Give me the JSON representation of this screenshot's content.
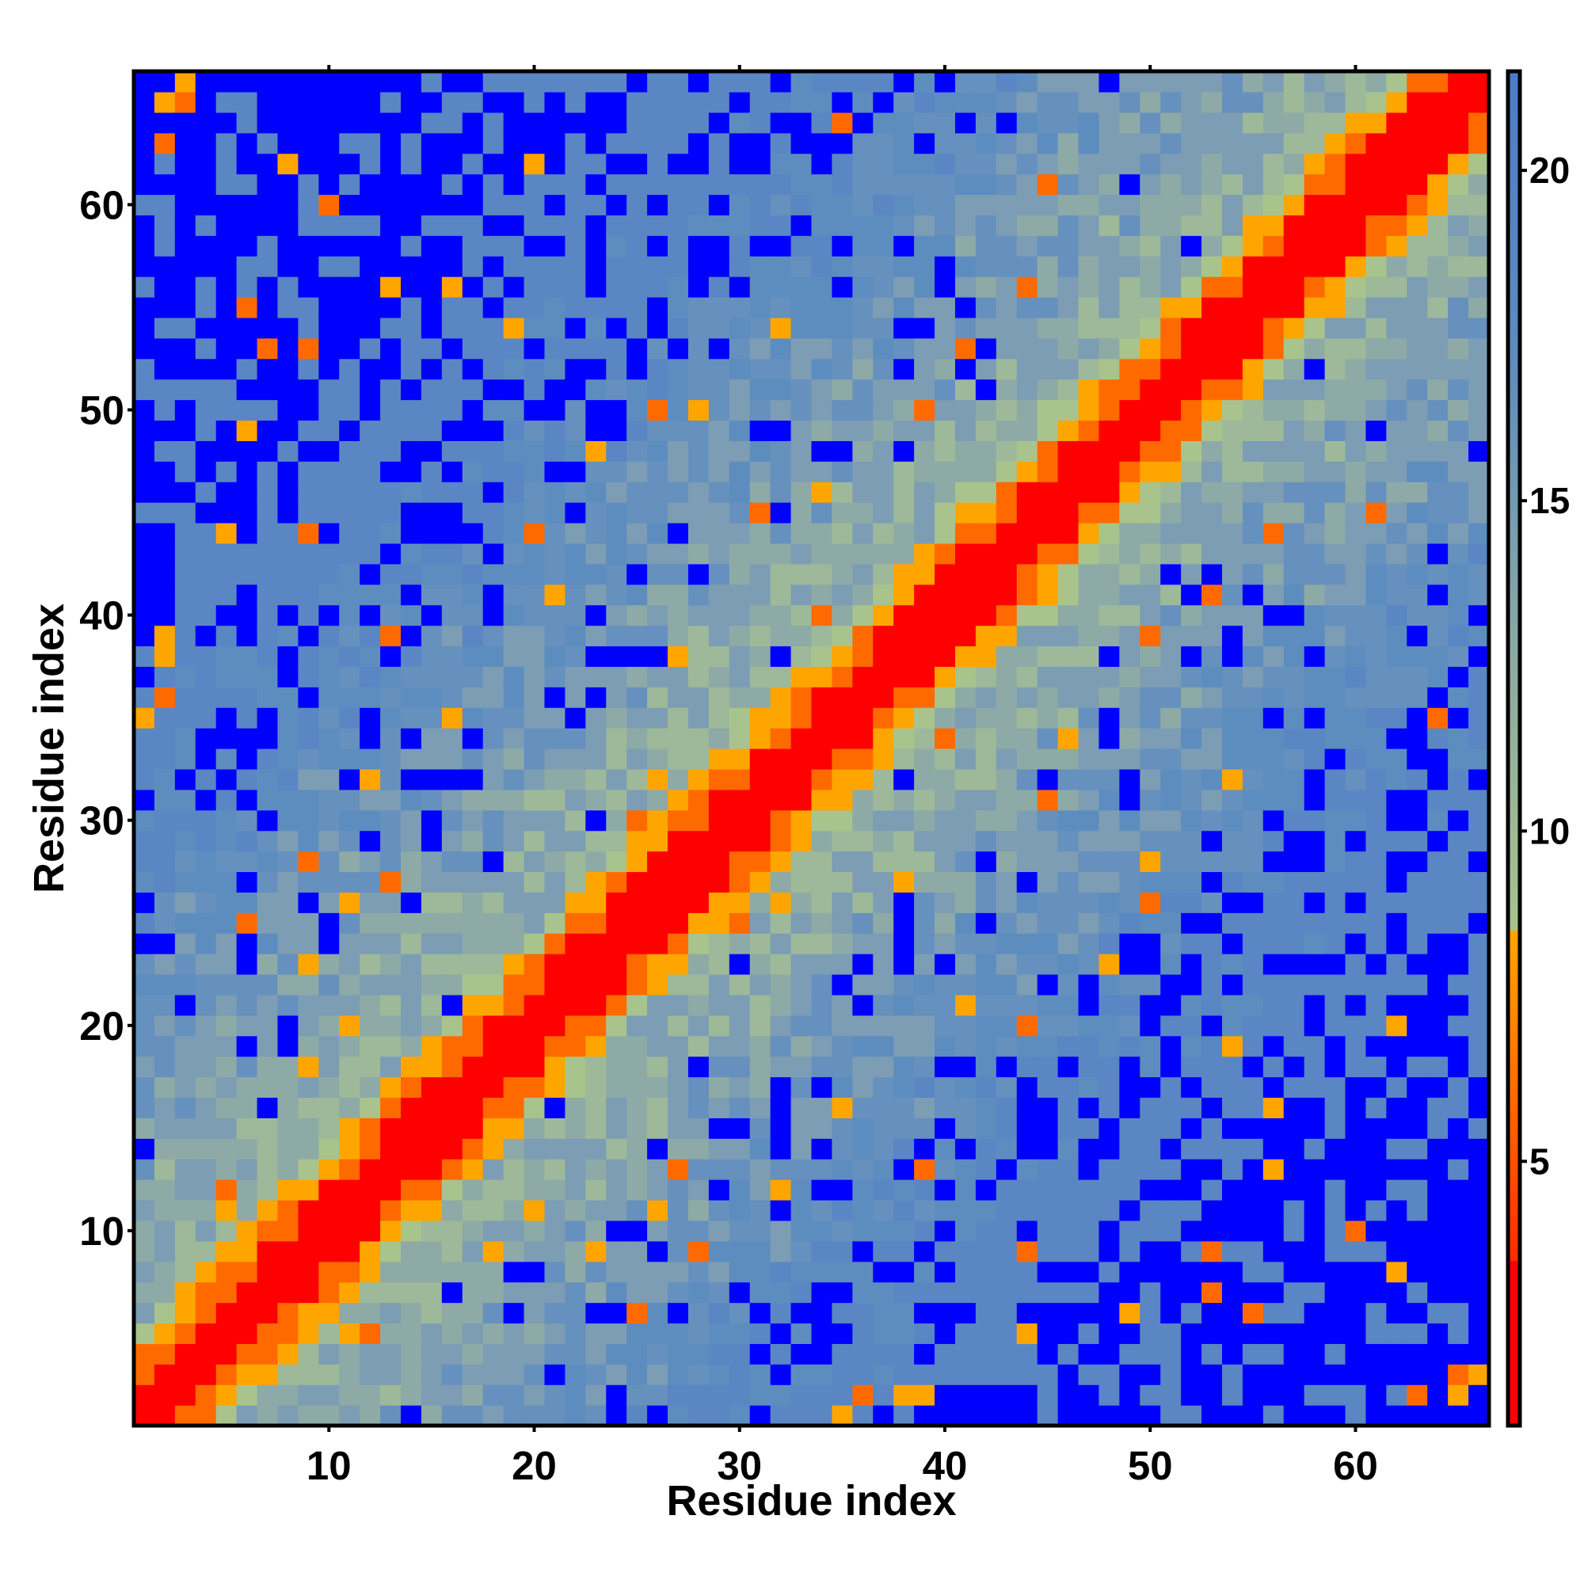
{
  "chart_data": {
    "type": "heatmap",
    "title": "",
    "xlabel": "Residue index",
    "ylabel": "Residue index",
    "n_residues": 66,
    "x_ticks": [
      10,
      20,
      30,
      40,
      50,
      60
    ],
    "y_ticks": [
      10,
      20,
      30,
      40,
      50,
      60
    ],
    "x_tick_labels": [
      "10",
      "20",
      "30",
      "40",
      "50",
      "60"
    ],
    "y_tick_labels": [
      "10",
      "20",
      "30",
      "40",
      "50",
      "60"
    ],
    "colorbar": {
      "range": [
        1,
        21.5
      ],
      "ticks": [
        5,
        10,
        15,
        20
      ],
      "tick_labels": [
        "5",
        "10",
        "15",
        "20"
      ],
      "segments": [
        {
          "from": 1,
          "to": 3.5,
          "color": "#ff0000"
        },
        {
          "from": 3.5,
          "to": 8.5,
          "gradient": [
            "#ff2a00",
            "#ff6a00",
            "#ffa500"
          ]
        },
        {
          "from": 8.5,
          "to": 21.5,
          "gradient": [
            "#a8c28c",
            "#8aa9a3",
            "#5d8cbf",
            "#4a7ccc"
          ]
        }
      ]
    },
    "colors": {
      "contact": "#ff0000",
      "near": "#ff6a00",
      "mid": "#ffa500",
      "background_green": "#a9c38d",
      "background_blue": "#5d8dbf",
      "far": "#0000ff"
    },
    "matrix_description": "Symmetric pairwise residue distance map; diagonal band |i-j|<=1 at minimum distance (red), |i-j|~2-4 orange, distant blocks exceed 20 (blue)."
  }
}
